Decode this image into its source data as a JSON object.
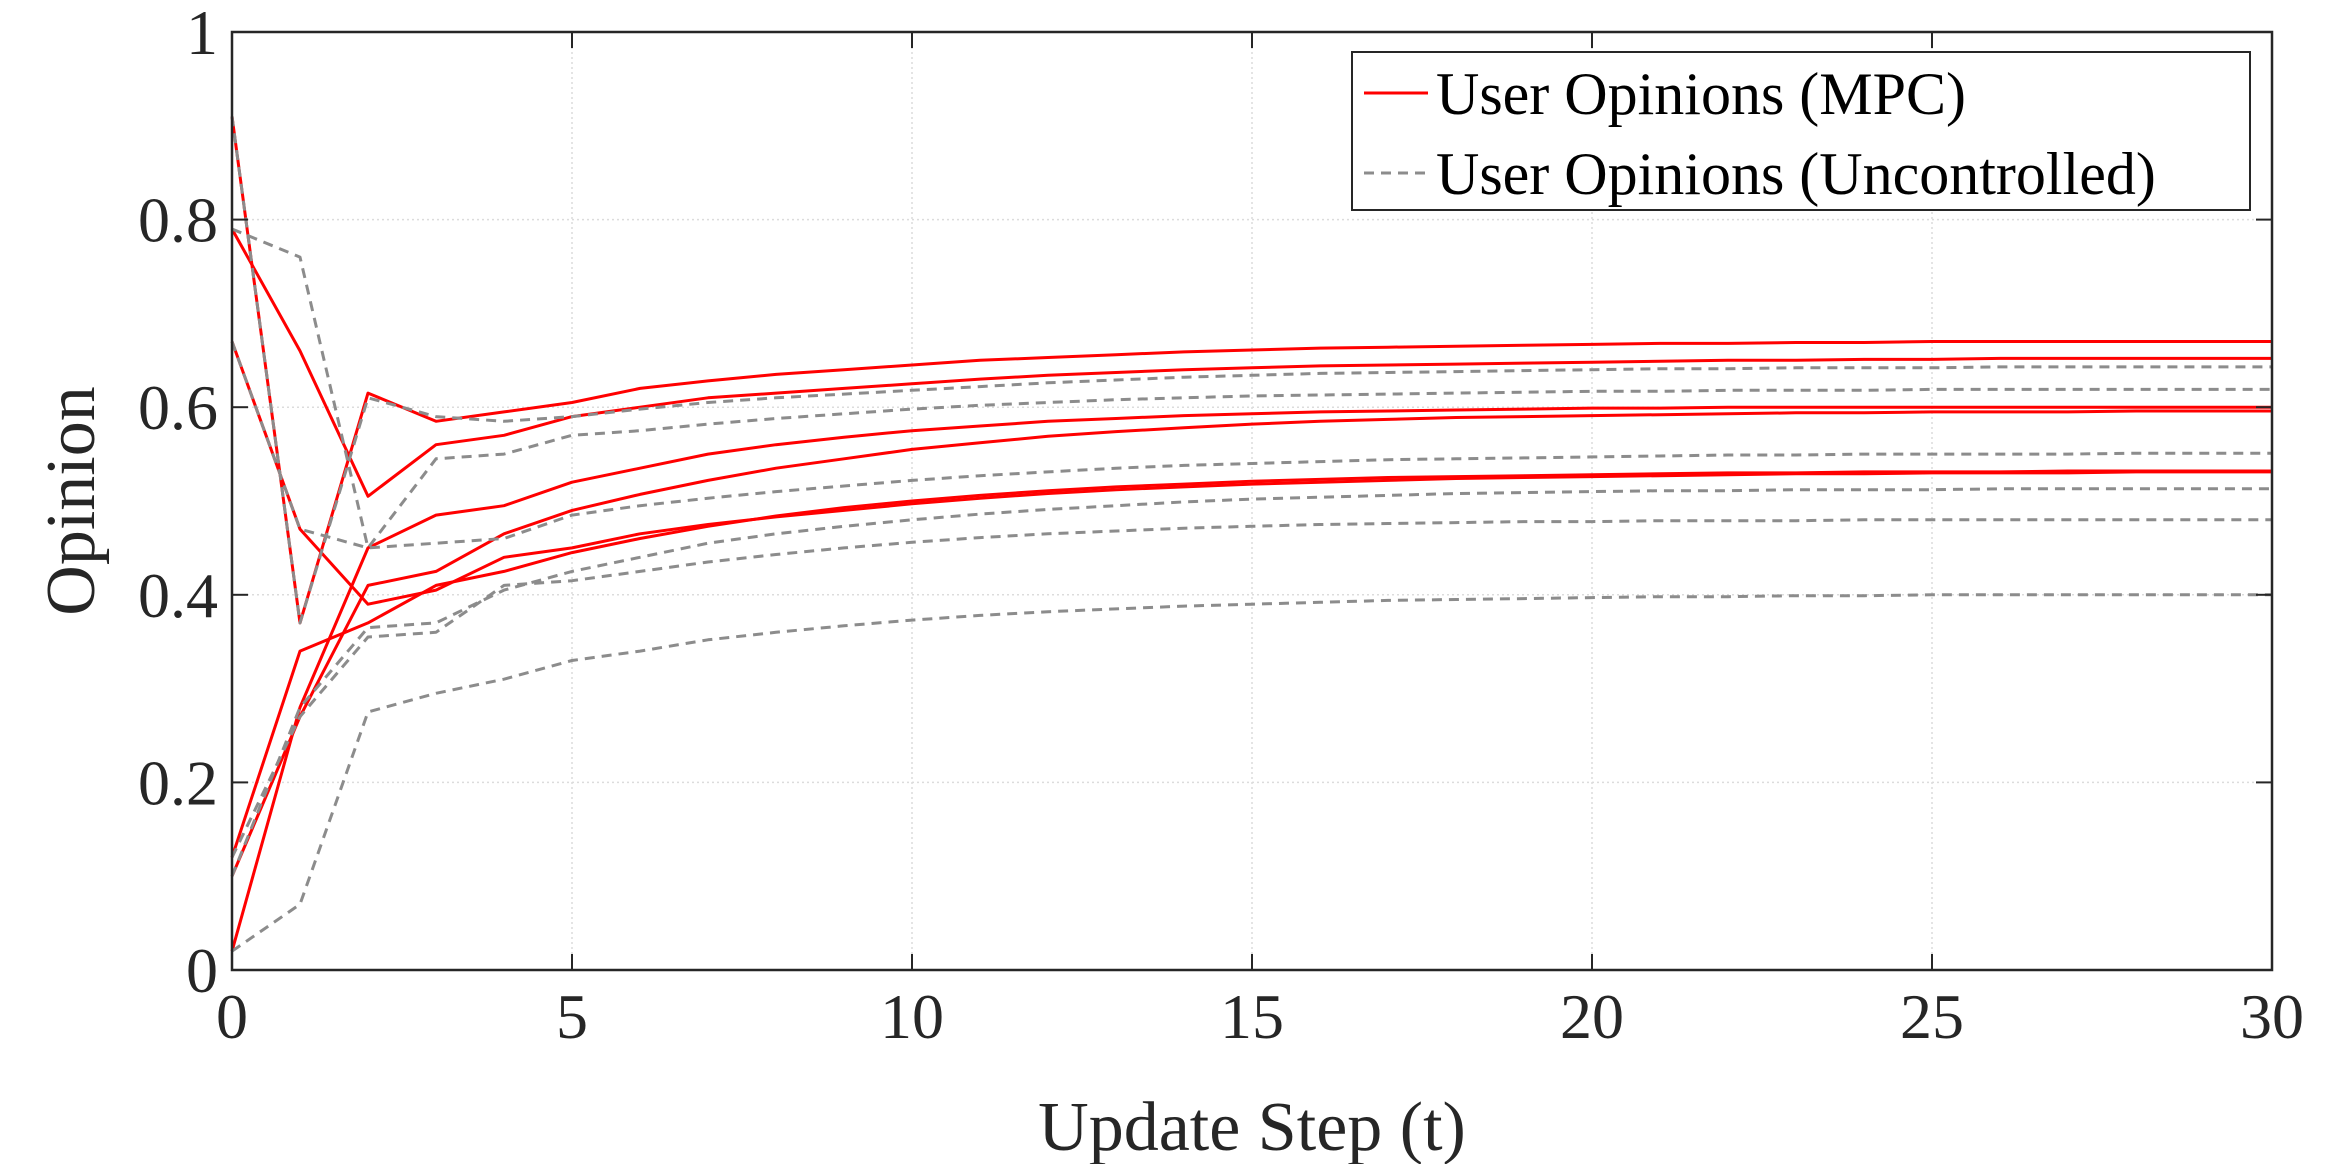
{
  "chart_data": {
    "type": "line",
    "title": "",
    "xlabel": "Update Step (t)",
    "ylabel": "Opinion",
    "xlim": [
      0,
      30
    ],
    "ylim": [
      0,
      1
    ],
    "xticks": [
      0,
      5,
      10,
      15,
      20,
      25,
      30
    ],
    "yticks": [
      0,
      0.2,
      0.4,
      0.6,
      0.8,
      1
    ],
    "ytick_labels": [
      "0",
      "0.2",
      "0.4",
      "0.6",
      "0.8",
      "1"
    ],
    "grid": true,
    "legend": {
      "position": "top-right",
      "entries": [
        {
          "label": "User Opinions (MPC)",
          "style": "solid",
          "color": "#ff0000"
        },
        {
          "label": "User Opinions (Uncontrolled)",
          "style": "dashed",
          "color": "#8c8c8c"
        }
      ]
    },
    "x": [
      0,
      1,
      2,
      3,
      4,
      5,
      6,
      7,
      8,
      9,
      10,
      11,
      12,
      13,
      14,
      15,
      16,
      17,
      18,
      19,
      20,
      21,
      22,
      23,
      24,
      25,
      26,
      27,
      28,
      29,
      30
    ],
    "series": [
      {
        "group": "mpc",
        "color": "#ff0000",
        "style": "solid",
        "values": [
          0.02,
          0.28,
          0.45,
          0.485,
          0.495,
          0.52,
          0.535,
          0.55,
          0.56,
          0.568,
          0.575,
          0.58,
          0.585,
          0.588,
          0.591,
          0.593,
          0.595,
          0.596,
          0.597,
          0.598,
          0.599,
          0.599,
          0.6,
          0.6,
          0.6,
          0.6,
          0.6,
          0.6,
          0.6,
          0.6,
          0.6
        ]
      },
      {
        "group": "mpc",
        "color": "#ff0000",
        "style": "solid",
        "values": [
          0.91,
          0.37,
          0.615,
          0.585,
          0.595,
          0.605,
          0.62,
          0.628,
          0.635,
          0.64,
          0.645,
          0.65,
          0.653,
          0.656,
          0.659,
          0.661,
          0.663,
          0.664,
          0.665,
          0.666,
          0.667,
          0.668,
          0.668,
          0.669,
          0.669,
          0.67,
          0.67,
          0.67,
          0.67,
          0.67,
          0.67
        ]
      },
      {
        "group": "mpc",
        "color": "#ff0000",
        "style": "solid",
        "values": [
          0.79,
          0.66,
          0.505,
          0.56,
          0.57,
          0.59,
          0.6,
          0.61,
          0.615,
          0.62,
          0.625,
          0.63,
          0.634,
          0.637,
          0.64,
          0.642,
          0.644,
          0.645,
          0.646,
          0.647,
          0.648,
          0.649,
          0.65,
          0.65,
          0.651,
          0.651,
          0.652,
          0.652,
          0.652,
          0.652,
          0.652
        ]
      },
      {
        "group": "mpc",
        "color": "#ff0000",
        "style": "solid",
        "values": [
          0.67,
          0.47,
          0.39,
          0.405,
          0.44,
          0.45,
          0.465,
          0.475,
          0.483,
          0.49,
          0.497,
          0.503,
          0.508,
          0.512,
          0.515,
          0.518,
          0.52,
          0.522,
          0.524,
          0.525,
          0.526,
          0.527,
          0.528,
          0.529,
          0.529,
          0.53,
          0.53,
          0.53,
          0.531,
          0.531,
          0.531
        ]
      },
      {
        "group": "mpc",
        "color": "#ff0000",
        "style": "solid",
        "values": [
          0.12,
          0.34,
          0.37,
          0.41,
          0.425,
          0.445,
          0.46,
          0.473,
          0.484,
          0.493,
          0.5,
          0.506,
          0.511,
          0.515,
          0.518,
          0.521,
          0.523,
          0.525,
          0.526,
          0.527,
          0.528,
          0.529,
          0.53,
          0.53,
          0.531,
          0.531,
          0.531,
          0.532,
          0.532,
          0.532,
          0.532
        ]
      },
      {
        "group": "mpc",
        "color": "#ff0000",
        "style": "solid",
        "values": [
          0.1,
          0.27,
          0.41,
          0.425,
          0.465,
          0.49,
          0.507,
          0.522,
          0.535,
          0.545,
          0.555,
          0.562,
          0.569,
          0.574,
          0.578,
          0.582,
          0.585,
          0.587,
          0.589,
          0.59,
          0.591,
          0.592,
          0.593,
          0.594,
          0.594,
          0.595,
          0.595,
          0.595,
          0.596,
          0.596,
          0.596
        ]
      },
      {
        "group": "uncontrolled",
        "color": "#8c8c8c",
        "style": "dashed",
        "values": [
          0.02,
          0.07,
          0.275,
          0.295,
          0.31,
          0.33,
          0.34,
          0.352,
          0.36,
          0.367,
          0.373,
          0.378,
          0.382,
          0.385,
          0.388,
          0.39,
          0.392,
          0.394,
          0.395,
          0.396,
          0.397,
          0.398,
          0.398,
          0.399,
          0.399,
          0.4,
          0.4,
          0.4,
          0.4,
          0.4,
          0.4
        ]
      },
      {
        "group": "uncontrolled",
        "color": "#8c8c8c",
        "style": "dashed",
        "values": [
          0.91,
          0.37,
          0.61,
          0.59,
          0.585,
          0.59,
          0.598,
          0.605,
          0.61,
          0.614,
          0.618,
          0.622,
          0.626,
          0.629,
          0.632,
          0.634,
          0.636,
          0.637,
          0.638,
          0.639,
          0.64,
          0.641,
          0.641,
          0.642,
          0.642,
          0.642,
          0.643,
          0.643,
          0.643,
          0.643,
          0.643
        ]
      },
      {
        "group": "uncontrolled",
        "color": "#8c8c8c",
        "style": "dashed",
        "values": [
          0.79,
          0.76,
          0.45,
          0.545,
          0.55,
          0.57,
          0.575,
          0.582,
          0.588,
          0.593,
          0.598,
          0.602,
          0.605,
          0.608,
          0.61,
          0.612,
          0.613,
          0.614,
          0.615,
          0.616,
          0.617,
          0.617,
          0.618,
          0.618,
          0.618,
          0.619,
          0.619,
          0.619,
          0.619,
          0.619,
          0.619
        ]
      },
      {
        "group": "uncontrolled",
        "color": "#8c8c8c",
        "style": "dashed",
        "values": [
          0.67,
          0.47,
          0.45,
          0.455,
          0.46,
          0.485,
          0.495,
          0.503,
          0.51,
          0.516,
          0.522,
          0.527,
          0.531,
          0.535,
          0.538,
          0.54,
          0.542,
          0.544,
          0.545,
          0.546,
          0.547,
          0.548,
          0.549,
          0.549,
          0.55,
          0.55,
          0.55,
          0.55,
          0.551,
          0.551,
          0.551
        ]
      },
      {
        "group": "uncontrolled",
        "color": "#8c8c8c",
        "style": "dashed",
        "values": [
          0.12,
          0.27,
          0.355,
          0.36,
          0.41,
          0.415,
          0.425,
          0.435,
          0.443,
          0.45,
          0.456,
          0.461,
          0.465,
          0.468,
          0.471,
          0.473,
          0.475,
          0.476,
          0.477,
          0.478,
          0.478,
          0.479,
          0.479,
          0.479,
          0.48,
          0.48,
          0.48,
          0.48,
          0.48,
          0.48,
          0.48
        ]
      },
      {
        "group": "uncontrolled",
        "color": "#8c8c8c",
        "style": "dashed",
        "values": [
          0.1,
          0.28,
          0.365,
          0.37,
          0.405,
          0.425,
          0.44,
          0.455,
          0.465,
          0.473,
          0.48,
          0.486,
          0.491,
          0.495,
          0.499,
          0.502,
          0.504,
          0.506,
          0.508,
          0.509,
          0.51,
          0.511,
          0.511,
          0.512,
          0.512,
          0.512,
          0.513,
          0.513,
          0.513,
          0.513,
          0.513
        ]
      }
    ]
  }
}
